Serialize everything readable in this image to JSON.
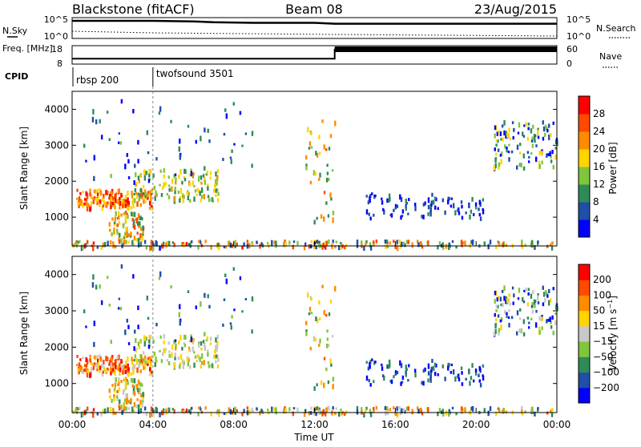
{
  "chart_data": [
    {
      "type": "line",
      "header": {
        "station": "Blackstone (fitACF)",
        "beam": "Beam 08",
        "date": "23/Aug/2015"
      },
      "left_label": "N.Sky",
      "right_label": "N.Search",
      "y_ticks_left": [
        "10^5",
        "10^0"
      ],
      "y_ticks_right": [
        "10^5",
        "10^0"
      ],
      "series": [
        {
          "name": "N.Sky",
          "x": [
            0,
            2,
            4,
            6,
            7,
            9,
            12,
            13,
            16,
            20,
            24
          ],
          "values": [
            5,
            5,
            5,
            4.8,
            4.5,
            4.3,
            4.3,
            4.0,
            4.0,
            4.0,
            4.0
          ]
        }
      ]
    },
    {
      "type": "line",
      "left_label": "Freq. [MHz]",
      "right_label": "Nave",
      "cpid_label": "CPID",
      "y_ticks_left": [
        "18",
        "8"
      ],
      "y_ticks_right": [
        "60",
        "0"
      ],
      "series": [
        {
          "name": "Freq",
          "x": [
            0,
            13.0,
            13.0,
            24
          ],
          "values": [
            10.5,
            10.5,
            16.5,
            16.5
          ]
        }
      ],
      "cpid_segments": [
        {
          "start": 0,
          "label": "rbsp 200"
        },
        {
          "start": 4,
          "label": "twofsound 3501"
        }
      ]
    },
    {
      "type": "heatmap",
      "title": "Power",
      "ylabel": "Slant Range [km]",
      "colorbar_label": "Power [dB]",
      "colorbar_ticks": [
        "28",
        "24",
        "20",
        "16",
        "12",
        "8",
        "4"
      ],
      "colors": [
        "#0000ff",
        "#1f4fa8",
        "#2e8b57",
        "#7fc63d",
        "#ffd400",
        "#ff8c00",
        "#ff4a00",
        "#ff0000"
      ],
      "ylim": [
        200,
        4500
      ],
      "yticks": [
        "4000",
        "3000",
        "2000",
        "1000"
      ]
    },
    {
      "type": "heatmap",
      "title": "Velocity",
      "ylabel": "Slant Range [km]",
      "colorbar_label": "Velocity [m s^-1]",
      "colorbar_ticks": [
        "200",
        "100",
        "50",
        "15",
        "−15",
        "−50",
        "−100",
        "−200"
      ],
      "colors": [
        "#0000ff",
        "#1f4fa8",
        "#2e8b57",
        "#7fc63d",
        "#c8c8c8",
        "#ffd400",
        "#ff8c00",
        "#ff4a00",
        "#ff0000"
      ],
      "ylim": [
        200,
        4500
      ],
      "yticks": [
        "4000",
        "3000",
        "2000",
        "1000"
      ],
      "xlabel": "Time UT",
      "xticks": [
        "00:00",
        "04:00",
        "08:00",
        "12:00",
        "16:00",
        "20:00",
        "00:00"
      ],
      "xlim": [
        0,
        24
      ]
    }
  ]
}
